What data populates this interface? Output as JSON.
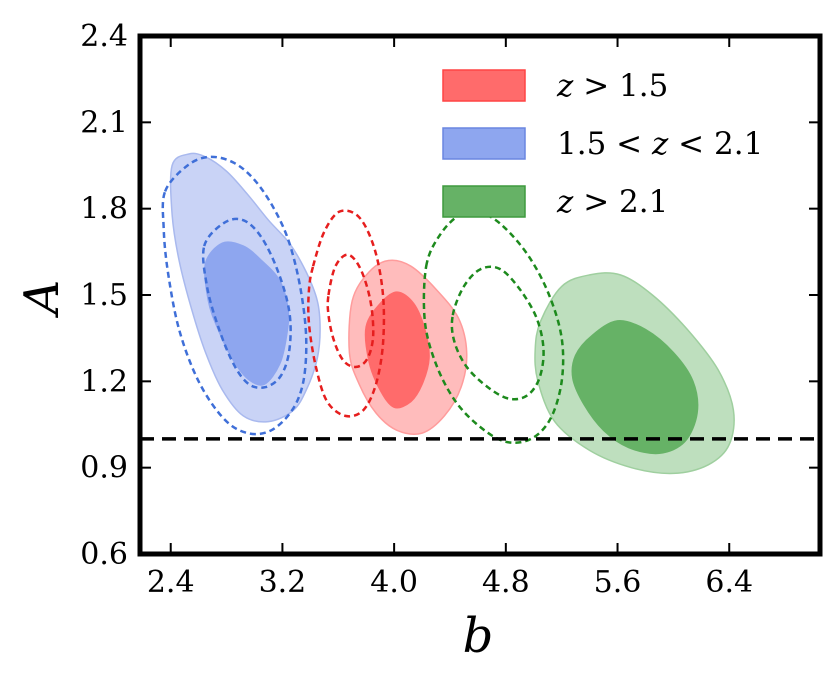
{
  "chart_data": {
    "type": "contour",
    "xlabel": "b",
    "ylabel": "A",
    "xlim": [
      2.18,
      7.05
    ],
    "ylim": [
      0.6,
      2.4
    ],
    "xticks": [
      2.4,
      3.2,
      4.0,
      4.8,
      5.6,
      6.4
    ],
    "yticks": [
      0.6,
      0.9,
      1.2,
      1.5,
      1.8,
      2.1,
      2.4
    ],
    "xtick_labels": [
      "2.4",
      "3.2",
      "4.0",
      "4.8",
      "5.6",
      "6.4"
    ],
    "ytick_labels": [
      "0.6",
      "0.9",
      "1.2",
      "1.5",
      "1.8",
      "2.1",
      "2.4"
    ],
    "reference_line": {
      "y": 1.0,
      "style": "dashed",
      "color": "#000000"
    },
    "legend_position": "top-right",
    "legend": [
      {
        "text": "z > 1.5",
        "color": "#ff6b6b",
        "edge": "#ff4444"
      },
      {
        "text": "1.5 < z < 2.1",
        "color": "#8ea6ef",
        "edge": "#6a86e0"
      },
      {
        "text": "z > 2.1",
        "color": "#66b266",
        "edge": "#3e9a3e"
      }
    ],
    "filled_contours": [
      {
        "series": "1.5 < z < 2.1",
        "level": "outer",
        "color": "#c9d3f6",
        "edge": "#a9b9ee",
        "points": [
          [
            2.41,
            1.95
          ],
          [
            2.53,
            1.99
          ],
          [
            2.65,
            1.98
          ],
          [
            2.8,
            1.93
          ],
          [
            2.95,
            1.85
          ],
          [
            3.1,
            1.76
          ],
          [
            3.25,
            1.68
          ],
          [
            3.37,
            1.58
          ],
          [
            3.45,
            1.48
          ],
          [
            3.47,
            1.38
          ],
          [
            3.45,
            1.28
          ],
          [
            3.38,
            1.18
          ],
          [
            3.28,
            1.1
          ],
          [
            3.1,
            1.06
          ],
          [
            2.92,
            1.08
          ],
          [
            2.77,
            1.17
          ],
          [
            2.65,
            1.3
          ],
          [
            2.55,
            1.45
          ],
          [
            2.46,
            1.62
          ],
          [
            2.41,
            1.78
          ]
        ]
      },
      {
        "series": "1.5 < z < 2.1",
        "level": "inner",
        "color": "#8ea6ef",
        "edge": "#8ea6ef",
        "points": [
          [
            2.65,
            1.61
          ],
          [
            2.77,
            1.68
          ],
          [
            2.92,
            1.67
          ],
          [
            3.05,
            1.62
          ],
          [
            3.18,
            1.55
          ],
          [
            3.24,
            1.45
          ],
          [
            3.23,
            1.36
          ],
          [
            3.18,
            1.26
          ],
          [
            3.07,
            1.19
          ],
          [
            2.95,
            1.21
          ],
          [
            2.84,
            1.28
          ],
          [
            2.74,
            1.38
          ],
          [
            2.67,
            1.48
          ]
        ]
      },
      {
        "series": "z > 1.5",
        "level": "outer",
        "color": "#ffbcbc",
        "edge": "#ff9c9c",
        "points": [
          [
            3.7,
            1.48
          ],
          [
            3.82,
            1.58
          ],
          [
            3.96,
            1.62
          ],
          [
            4.12,
            1.6
          ],
          [
            4.3,
            1.52
          ],
          [
            4.46,
            1.42
          ],
          [
            4.52,
            1.3
          ],
          [
            4.48,
            1.18
          ],
          [
            4.36,
            1.08
          ],
          [
            4.2,
            1.02
          ],
          [
            4.02,
            1.03
          ],
          [
            3.87,
            1.09
          ],
          [
            3.75,
            1.19
          ],
          [
            3.68,
            1.3
          ]
        ]
      },
      {
        "series": "z > 1.5",
        "level": "inner",
        "color": "#ff6b6b",
        "edge": "#ff6b6b",
        "points": [
          [
            3.8,
            1.39
          ],
          [
            3.9,
            1.47
          ],
          [
            4.02,
            1.51
          ],
          [
            4.14,
            1.47
          ],
          [
            4.22,
            1.38
          ],
          [
            4.25,
            1.28
          ],
          [
            4.2,
            1.19
          ],
          [
            4.12,
            1.13
          ],
          [
            4.0,
            1.11
          ],
          [
            3.9,
            1.17
          ],
          [
            3.82,
            1.27
          ]
        ]
      },
      {
        "series": "z > 2.1",
        "level": "outer",
        "color": "#bedfbe",
        "edge": "#9fcf9f",
        "points": [
          [
            5.05,
            1.41
          ],
          [
            5.2,
            1.53
          ],
          [
            5.4,
            1.57
          ],
          [
            5.62,
            1.57
          ],
          [
            5.85,
            1.5
          ],
          [
            6.1,
            1.38
          ],
          [
            6.32,
            1.24
          ],
          [
            6.43,
            1.1
          ],
          [
            6.4,
            0.98
          ],
          [
            6.25,
            0.91
          ],
          [
            6.0,
            0.88
          ],
          [
            5.7,
            0.9
          ],
          [
            5.4,
            0.96
          ],
          [
            5.15,
            1.06
          ],
          [
            5.03,
            1.2
          ],
          [
            5.01,
            1.31
          ]
        ]
      },
      {
        "series": "z > 2.1",
        "level": "inner",
        "color": "#66b266",
        "edge": "#66b266",
        "points": [
          [
            5.3,
            1.29
          ],
          [
            5.42,
            1.36
          ],
          [
            5.6,
            1.41
          ],
          [
            5.8,
            1.38
          ],
          [
            6.0,
            1.3
          ],
          [
            6.14,
            1.2
          ],
          [
            6.17,
            1.09
          ],
          [
            6.08,
            0.99
          ],
          [
            5.9,
            0.95
          ],
          [
            5.68,
            0.97
          ],
          [
            5.5,
            1.03
          ],
          [
            5.36,
            1.12
          ],
          [
            5.28,
            1.21
          ]
        ]
      }
    ],
    "dashed_contours": [
      {
        "series": "1.5 < z < 2.1",
        "level": "outer",
        "color": "#3f6fd8",
        "points": [
          [
            2.36,
            1.86
          ],
          [
            2.52,
            1.95
          ],
          [
            2.68,
            1.98
          ],
          [
            2.85,
            1.96
          ],
          [
            3.0,
            1.9
          ],
          [
            3.14,
            1.8
          ],
          [
            3.25,
            1.68
          ],
          [
            3.33,
            1.52
          ],
          [
            3.37,
            1.35
          ],
          [
            3.35,
            1.2
          ],
          [
            3.27,
            1.1
          ],
          [
            3.12,
            1.03
          ],
          [
            2.95,
            1.02
          ],
          [
            2.78,
            1.07
          ],
          [
            2.6,
            1.2
          ],
          [
            2.46,
            1.38
          ],
          [
            2.38,
            1.58
          ],
          [
            2.35,
            1.73
          ]
        ]
      },
      {
        "series": "1.5 < z < 2.1",
        "level": "inner",
        "color": "#3f6fd8",
        "points": [
          [
            2.64,
            1.67
          ],
          [
            2.78,
            1.75
          ],
          [
            2.92,
            1.76
          ],
          [
            3.05,
            1.7
          ],
          [
            3.17,
            1.58
          ],
          [
            3.25,
            1.44
          ],
          [
            3.25,
            1.31
          ],
          [
            3.19,
            1.22
          ],
          [
            3.08,
            1.18
          ],
          [
            2.96,
            1.19
          ],
          [
            2.85,
            1.26
          ],
          [
            2.74,
            1.39
          ],
          [
            2.66,
            1.53
          ]
        ]
      },
      {
        "series": "z > 1.5",
        "level": "outer",
        "color": "#e61e1e",
        "points": [
          [
            3.42,
            1.6
          ],
          [
            3.5,
            1.72
          ],
          [
            3.61,
            1.79
          ],
          [
            3.75,
            1.77
          ],
          [
            3.86,
            1.66
          ],
          [
            3.92,
            1.5
          ],
          [
            3.92,
            1.33
          ],
          [
            3.87,
            1.19
          ],
          [
            3.78,
            1.1
          ],
          [
            3.65,
            1.08
          ],
          [
            3.52,
            1.13
          ],
          [
            3.44,
            1.25
          ],
          [
            3.39,
            1.4
          ],
          [
            3.39,
            1.52
          ]
        ]
      },
      {
        "series": "z > 1.5",
        "level": "inner",
        "color": "#e61e1e",
        "points": [
          [
            3.53,
            1.5
          ],
          [
            3.58,
            1.6
          ],
          [
            3.67,
            1.64
          ],
          [
            3.76,
            1.59
          ],
          [
            3.83,
            1.48
          ],
          [
            3.85,
            1.36
          ],
          [
            3.81,
            1.28
          ],
          [
            3.73,
            1.25
          ],
          [
            3.64,
            1.27
          ],
          [
            3.57,
            1.34
          ],
          [
            3.53,
            1.43
          ]
        ]
      },
      {
        "series": "z > 2.1",
        "level": "outer",
        "color": "#1d8a1d",
        "points": [
          [
            4.23,
            1.6
          ],
          [
            4.33,
            1.71
          ],
          [
            4.48,
            1.78
          ],
          [
            4.65,
            1.78
          ],
          [
            4.8,
            1.73
          ],
          [
            4.97,
            1.63
          ],
          [
            5.11,
            1.5
          ],
          [
            5.2,
            1.35
          ],
          [
            5.2,
            1.2
          ],
          [
            5.12,
            1.07
          ],
          [
            4.98,
            1.0
          ],
          [
            4.8,
            0.99
          ],
          [
            4.62,
            1.04
          ],
          [
            4.44,
            1.13
          ],
          [
            4.3,
            1.26
          ],
          [
            4.22,
            1.41
          ]
        ]
      },
      {
        "series": "z > 2.1",
        "level": "inner",
        "color": "#1d8a1d",
        "points": [
          [
            4.42,
            1.43
          ],
          [
            4.5,
            1.53
          ],
          [
            4.62,
            1.59
          ],
          [
            4.76,
            1.59
          ],
          [
            4.9,
            1.52
          ],
          [
            5.02,
            1.42
          ],
          [
            5.07,
            1.31
          ],
          [
            5.04,
            1.21
          ],
          [
            4.95,
            1.15
          ],
          [
            4.82,
            1.14
          ],
          [
            4.67,
            1.18
          ],
          [
            4.52,
            1.25
          ],
          [
            4.43,
            1.34
          ]
        ]
      }
    ]
  }
}
